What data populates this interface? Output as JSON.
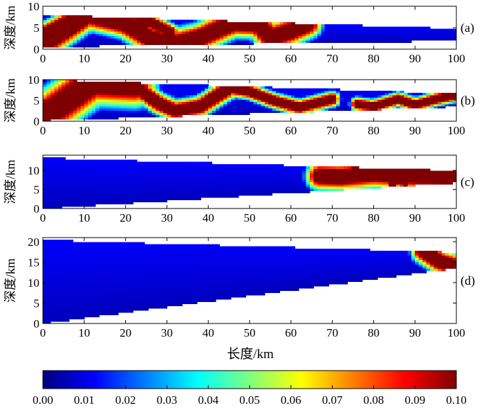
{
  "figure": {
    "xlabel": "长度/km",
    "ylabel": "深度/km"
  },
  "chart_data": [
    {
      "type": "heatmap",
      "panel_label": "(a)",
      "xlabel": "",
      "ylabel": "深度/km",
      "xlim": [
        0,
        100
      ],
      "ylim": [
        0,
        10
      ],
      "xticks": [
        0,
        10,
        20,
        30,
        40,
        50,
        60,
        70,
        80,
        90,
        100
      ],
      "yticks": [
        0,
        5,
        10
      ],
      "domain_top": [
        [
          0,
          8.0
        ],
        [
          100,
          4.8
        ]
      ],
      "domain_bottom": [
        [
          0,
          0.6
        ],
        [
          100,
          2.0
        ]
      ],
      "high_zones": [
        {
          "path": [
            [
              0,
              1.0
            ],
            [
              11,
              8.0
            ],
            [
              20,
              6.0
            ],
            [
              26,
              2.6
            ],
            [
              32,
              1.4
            ],
            [
              38,
              2.8
            ],
            [
              46,
              6.2
            ],
            [
              52,
              6.0
            ],
            [
              55,
              2.8
            ],
            [
              60,
              4.3
            ],
            [
              64,
              6.0
            ]
          ],
          "half_width": 1.6
        },
        {
          "path": [
            [
              0,
              3.5
            ],
            [
              8,
              7.5
            ]
          ],
          "half_width": 1.2
        },
        {
          "path": [
            [
              20,
              6.0
            ],
            [
              26,
              6.4
            ],
            [
              31,
              4.0
            ]
          ],
          "half_width": 0.9
        }
      ]
    },
    {
      "type": "heatmap",
      "panel_label": "(b)",
      "xlabel": "",
      "ylabel": "深度/km",
      "xlim": [
        0,
        100
      ],
      "ylim": [
        0,
        10
      ],
      "xticks": [
        0,
        10,
        20,
        30,
        40,
        50,
        60,
        70,
        80,
        90,
        100
      ],
      "yticks": [
        0,
        5,
        10
      ],
      "domain_top": [
        [
          0,
          10.0
        ],
        [
          100,
          6.7
        ]
      ],
      "domain_bottom": [
        [
          0,
          0.2
        ],
        [
          100,
          3.5
        ]
      ],
      "high_zones": [
        {
          "path": [
            [
              0,
              1.0
            ],
            [
              12,
              9.5
            ],
            [
              22,
              9.0
            ]
          ],
          "half_width": 2.6
        },
        {
          "path": [
            [
              22,
              8.6
            ],
            [
              28,
              4.4
            ],
            [
              32,
              2.6
            ],
            [
              38,
              3.6
            ],
            [
              45,
              8.0
            ]
          ],
          "half_width": 1.2
        },
        {
          "path": [
            [
              45,
              8.0
            ],
            [
              50,
              7.2
            ],
            [
              56,
              5.0
            ],
            [
              62,
              3.4
            ],
            [
              70,
              5.4
            ]
          ],
          "half_width": 0.9
        },
        {
          "path": [
            [
              76,
              4.2
            ],
            [
              80,
              3.6
            ],
            [
              86,
              5.4
            ],
            [
              90,
              4.0
            ],
            [
              95,
              5.4
            ],
            [
              100,
              6.4
            ]
          ],
          "half_width": 0.8
        }
      ]
    },
    {
      "type": "heatmap",
      "panel_label": "(c)",
      "xlabel": "",
      "ylabel": "深度/km",
      "xlim": [
        0,
        100
      ],
      "ylim": [
        0,
        14
      ],
      "xticks": [
        0,
        10,
        20,
        30,
        40,
        50,
        60,
        70,
        80,
        90,
        100
      ],
      "yticks": [
        0,
        5,
        10
      ],
      "domain_top": [
        [
          0,
          13.3
        ],
        [
          100,
          10.0
        ]
      ],
      "domain_bottom": [
        [
          0,
          0.0
        ],
        [
          100,
          6.8
        ]
      ],
      "high_zones": [
        {
          "path": [
            [
              67,
              8.6
            ],
            [
              72,
              8.4
            ],
            [
              80,
              9.2
            ],
            [
              90,
              8.6
            ],
            [
              100,
              8.4
            ]
          ],
          "half_width": 1.6
        },
        {
          "path": [
            [
              75,
              10.4
            ],
            [
              78,
              10.0
            ],
            [
              81,
              10.6
            ]
          ],
          "half_width": 0.6
        },
        {
          "path": [
            [
              84,
              6.4
            ],
            [
              86,
              7.0
            ],
            [
              88,
              6.6
            ]
          ],
          "half_width": 0.5
        }
      ]
    },
    {
      "type": "heatmap",
      "panel_label": "(d)",
      "xlabel": "长度/km",
      "ylabel": "深度/km",
      "xlim": [
        0,
        100
      ],
      "ylim": [
        0,
        21
      ],
      "xticks": [
        0,
        10,
        20,
        30,
        40,
        50,
        60,
        70,
        80,
        90,
        100
      ],
      "yticks": [
        0,
        5,
        10,
        15,
        20
      ],
      "domain_top": [
        [
          0,
          20.4
        ],
        [
          100,
          17.4
        ]
      ],
      "domain_bottom": [
        [
          0,
          0.0
        ],
        [
          100,
          13.6
        ]
      ],
      "high_zones": [
        {
          "path": [
            [
              92,
              17.8
            ],
            [
              96,
              15.2
            ],
            [
              100,
              14.0
            ]
          ],
          "half_width": 1.4
        }
      ]
    }
  ],
  "colorbar": {
    "min": 0,
    "max": 0.1,
    "ticks": [
      "0.00",
      "0.01",
      "0.02",
      "0.03",
      "0.04",
      "0.05",
      "0.06",
      "0.07",
      "0.08",
      "0.09",
      "0.10"
    ],
    "colormap": "jet",
    "colormap_stops": [
      "#00007f",
      "#0000ff",
      "#007fff",
      "#00ffff",
      "#7fff7f",
      "#ffff00",
      "#ff7f00",
      "#ff0000",
      "#7f0000"
    ]
  }
}
